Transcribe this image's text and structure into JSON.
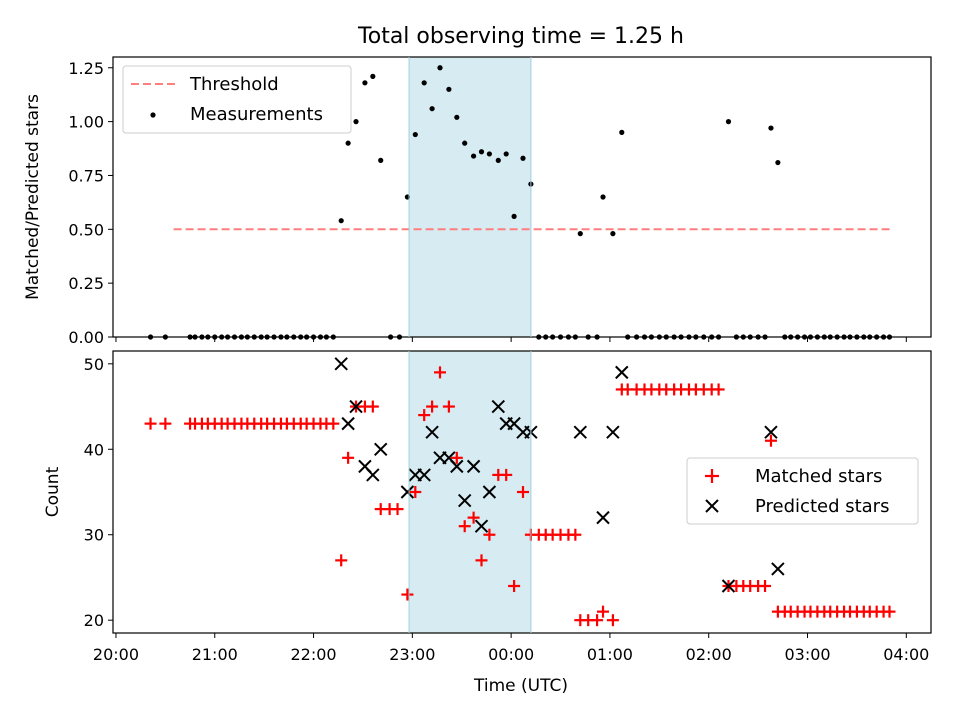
{
  "figure_title": "Total observing time = 1.25 h",
  "colors": {
    "threshold": "#ff7f7f",
    "measurements": "#000000",
    "matched": "#ff0000",
    "predicted": "#000000",
    "shade": "#add8e6"
  },
  "chart_data": [
    {
      "type": "scatter",
      "ylabel": "Matched/Predicted stars",
      "x_unit": "hours since 20:00 UTC",
      "xlim": [
        19.97,
        28.25
      ],
      "ylim": [
        0,
        1.3
      ],
      "yticks": [
        0.0,
        0.25,
        0.5,
        0.75,
        1.0,
        1.25
      ],
      "ytick_labels": [
        "0.00",
        "0.25",
        "0.50",
        "0.75",
        "1.00",
        "1.25"
      ],
      "shaded_region": [
        "22:58",
        "00:12"
      ],
      "legend": {
        "position": "upper-left",
        "entries": [
          "Threshold",
          "Measurements"
        ]
      },
      "threshold": {
        "name": "Threshold",
        "value": 0.5,
        "x_range": [
          "20:35",
          "03:52"
        ]
      },
      "series": [
        {
          "name": "Measurements",
          "points": [
            [
              0.35,
              0
            ],
            [
              0.5,
              0
            ],
            [
              0.75,
              0
            ],
            [
              0.8,
              0
            ],
            [
              0.87,
              0
            ],
            [
              0.93,
              0
            ],
            [
              1.0,
              0
            ],
            [
              1.07,
              0
            ],
            [
              1.13,
              0
            ],
            [
              1.2,
              0
            ],
            [
              1.27,
              0
            ],
            [
              1.33,
              0
            ],
            [
              1.4,
              0
            ],
            [
              1.47,
              0
            ],
            [
              1.53,
              0
            ],
            [
              1.6,
              0
            ],
            [
              1.67,
              0
            ],
            [
              1.73,
              0
            ],
            [
              1.8,
              0
            ],
            [
              1.87,
              0
            ],
            [
              1.93,
              0
            ],
            [
              2.0,
              0
            ],
            [
              2.07,
              0
            ],
            [
              2.13,
              0
            ],
            [
              2.2,
              0
            ],
            [
              2.28,
              0.54
            ],
            [
              2.35,
              0.9
            ],
            [
              2.43,
              1.0
            ],
            [
              2.52,
              1.18
            ],
            [
              2.6,
              1.21
            ],
            [
              2.68,
              0.82
            ],
            [
              2.78,
              0
            ],
            [
              2.87,
              0
            ],
            [
              2.95,
              0.65
            ],
            [
              3.03,
              0.94
            ],
            [
              3.12,
              1.18
            ],
            [
              3.2,
              1.06
            ],
            [
              3.28,
              1.25
            ],
            [
              3.37,
              1.15
            ],
            [
              3.45,
              1.02
            ],
            [
              3.53,
              0.9
            ],
            [
              3.62,
              0.84
            ],
            [
              3.7,
              0.86
            ],
            [
              3.78,
              0.85
            ],
            [
              3.87,
              0.82
            ],
            [
              3.95,
              0.85
            ],
            [
              4.03,
              0.56
            ],
            [
              4.12,
              0.83
            ],
            [
              4.2,
              0.71
            ],
            [
              4.28,
              0
            ],
            [
              4.35,
              0
            ],
            [
              4.42,
              0
            ],
            [
              4.5,
              0
            ],
            [
              4.58,
              0
            ],
            [
              4.65,
              0
            ],
            [
              4.7,
              0.48
            ],
            [
              4.78,
              0
            ],
            [
              4.87,
              0
            ],
            [
              4.93,
              0.65
            ],
            [
              5.03,
              0.48
            ],
            [
              5.12,
              0.95
            ],
            [
              5.18,
              0
            ],
            [
              5.27,
              0
            ],
            [
              5.35,
              0
            ],
            [
              5.42,
              0
            ],
            [
              5.5,
              0
            ],
            [
              5.57,
              0
            ],
            [
              5.65,
              0
            ],
            [
              5.72,
              0
            ],
            [
              5.8,
              0
            ],
            [
              5.87,
              0
            ],
            [
              5.95,
              0
            ],
            [
              6.03,
              0
            ],
            [
              6.1,
              0
            ],
            [
              6.2,
              1.0
            ],
            [
              6.28,
              0
            ],
            [
              6.35,
              0
            ],
            [
              6.42,
              0
            ],
            [
              6.5,
              0
            ],
            [
              6.57,
              0
            ],
            [
              6.63,
              0.97
            ],
            [
              6.7,
              0.81
            ],
            [
              6.77,
              0
            ],
            [
              6.83,
              0
            ],
            [
              6.9,
              0
            ],
            [
              6.97,
              0
            ],
            [
              7.03,
              0
            ],
            [
              7.1,
              0
            ],
            [
              7.17,
              0
            ],
            [
              7.23,
              0
            ],
            [
              7.3,
              0
            ],
            [
              7.37,
              0
            ],
            [
              7.43,
              0
            ],
            [
              7.5,
              0
            ],
            [
              7.57,
              0
            ],
            [
              7.63,
              0
            ],
            [
              7.7,
              0
            ],
            [
              7.77,
              0
            ],
            [
              7.83,
              0
            ]
          ]
        }
      ]
    },
    {
      "type": "scatter",
      "xlabel": "Time (UTC)",
      "ylabel": "Count",
      "x_unit": "hours since 20:00 UTC",
      "xlim": [
        19.97,
        28.25
      ],
      "ylim": [
        18.5,
        51.5
      ],
      "yticks": [
        20,
        30,
        40,
        50
      ],
      "ytick_labels": [
        "20",
        "30",
        "40",
        "50"
      ],
      "xticks": [
        20,
        21,
        22,
        23,
        24,
        25,
        26,
        27,
        28
      ],
      "xtick_labels": [
        "20:00",
        "21:00",
        "22:00",
        "23:00",
        "00:00",
        "01:00",
        "02:00",
        "03:00",
        "04:00"
      ],
      "shaded_region": [
        "22:58",
        "00:12"
      ],
      "legend": {
        "position": "center-right",
        "entries": [
          "Matched stars",
          "Predicted stars"
        ]
      },
      "series": [
        {
          "name": "Matched stars",
          "marker": "plus",
          "points": [
            [
              0.35,
              43
            ],
            [
              0.5,
              43
            ],
            [
              0.75,
              43
            ],
            [
              0.8,
              43
            ],
            [
              0.87,
              43
            ],
            [
              0.93,
              43
            ],
            [
              1.0,
              43
            ],
            [
              1.07,
              43
            ],
            [
              1.13,
              43
            ],
            [
              1.2,
              43
            ],
            [
              1.27,
              43
            ],
            [
              1.33,
              43
            ],
            [
              1.4,
              43
            ],
            [
              1.47,
              43
            ],
            [
              1.53,
              43
            ],
            [
              1.6,
              43
            ],
            [
              1.67,
              43
            ],
            [
              1.73,
              43
            ],
            [
              1.8,
              43
            ],
            [
              1.87,
              43
            ],
            [
              1.93,
              43
            ],
            [
              2.0,
              43
            ],
            [
              2.07,
              43
            ],
            [
              2.13,
              43
            ],
            [
              2.2,
              43
            ],
            [
              2.28,
              27
            ],
            [
              2.35,
              39
            ],
            [
              2.43,
              45
            ],
            [
              2.52,
              45
            ],
            [
              2.6,
              45
            ],
            [
              2.68,
              33
            ],
            [
              2.77,
              33
            ],
            [
              2.85,
              33
            ],
            [
              2.95,
              23
            ],
            [
              3.03,
              35
            ],
            [
              3.12,
              44
            ],
            [
              3.2,
              45
            ],
            [
              3.28,
              49
            ],
            [
              3.37,
              45
            ],
            [
              3.45,
              39
            ],
            [
              3.53,
              31
            ],
            [
              3.62,
              32
            ],
            [
              3.7,
              27
            ],
            [
              3.78,
              30
            ],
            [
              3.87,
              37
            ],
            [
              3.95,
              37
            ],
            [
              4.03,
              24
            ],
            [
              4.12,
              35
            ],
            [
              4.2,
              30
            ],
            [
              4.28,
              30
            ],
            [
              4.35,
              30
            ],
            [
              4.42,
              30
            ],
            [
              4.5,
              30
            ],
            [
              4.58,
              30
            ],
            [
              4.65,
              30
            ],
            [
              4.7,
              20
            ],
            [
              4.78,
              20
            ],
            [
              4.87,
              20
            ],
            [
              4.93,
              21
            ],
            [
              5.03,
              20
            ],
            [
              5.12,
              47
            ],
            [
              5.18,
              47
            ],
            [
              5.27,
              47
            ],
            [
              5.35,
              47
            ],
            [
              5.42,
              47
            ],
            [
              5.5,
              47
            ],
            [
              5.57,
              47
            ],
            [
              5.65,
              47
            ],
            [
              5.72,
              47
            ],
            [
              5.8,
              47
            ],
            [
              5.87,
              47
            ],
            [
              5.95,
              47
            ],
            [
              6.03,
              47
            ],
            [
              6.1,
              47
            ],
            [
              6.2,
              24
            ],
            [
              6.28,
              24
            ],
            [
              6.35,
              24
            ],
            [
              6.42,
              24
            ],
            [
              6.5,
              24
            ],
            [
              6.57,
              24
            ],
            [
              6.63,
              41
            ],
            [
              6.7,
              21
            ],
            [
              6.77,
              21
            ],
            [
              6.83,
              21
            ],
            [
              6.9,
              21
            ],
            [
              6.97,
              21
            ],
            [
              7.03,
              21
            ],
            [
              7.1,
              21
            ],
            [
              7.17,
              21
            ],
            [
              7.23,
              21
            ],
            [
              7.3,
              21
            ],
            [
              7.37,
              21
            ],
            [
              7.43,
              21
            ],
            [
              7.5,
              21
            ],
            [
              7.57,
              21
            ],
            [
              7.63,
              21
            ],
            [
              7.7,
              21
            ],
            [
              7.77,
              21
            ],
            [
              7.83,
              21
            ]
          ]
        },
        {
          "name": "Predicted stars",
          "marker": "x",
          "points": [
            [
              2.28,
              50
            ],
            [
              2.35,
              43
            ],
            [
              2.43,
              45
            ],
            [
              2.52,
              38
            ],
            [
              2.6,
              37
            ],
            [
              2.68,
              40
            ],
            [
              2.95,
              35
            ],
            [
              3.03,
              37
            ],
            [
              3.12,
              37
            ],
            [
              3.2,
              42
            ],
            [
              3.28,
              39
            ],
            [
              3.37,
              39
            ],
            [
              3.45,
              38
            ],
            [
              3.53,
              34
            ],
            [
              3.62,
              38
            ],
            [
              3.7,
              31
            ],
            [
              3.78,
              35
            ],
            [
              3.87,
              45
            ],
            [
              3.95,
              43
            ],
            [
              4.03,
              43
            ],
            [
              4.12,
              42
            ],
            [
              4.2,
              42
            ],
            [
              4.7,
              42
            ],
            [
              4.93,
              32
            ],
            [
              5.03,
              42
            ],
            [
              5.12,
              49
            ],
            [
              6.2,
              24
            ],
            [
              6.63,
              42
            ],
            [
              6.7,
              26
            ]
          ]
        }
      ]
    }
  ]
}
